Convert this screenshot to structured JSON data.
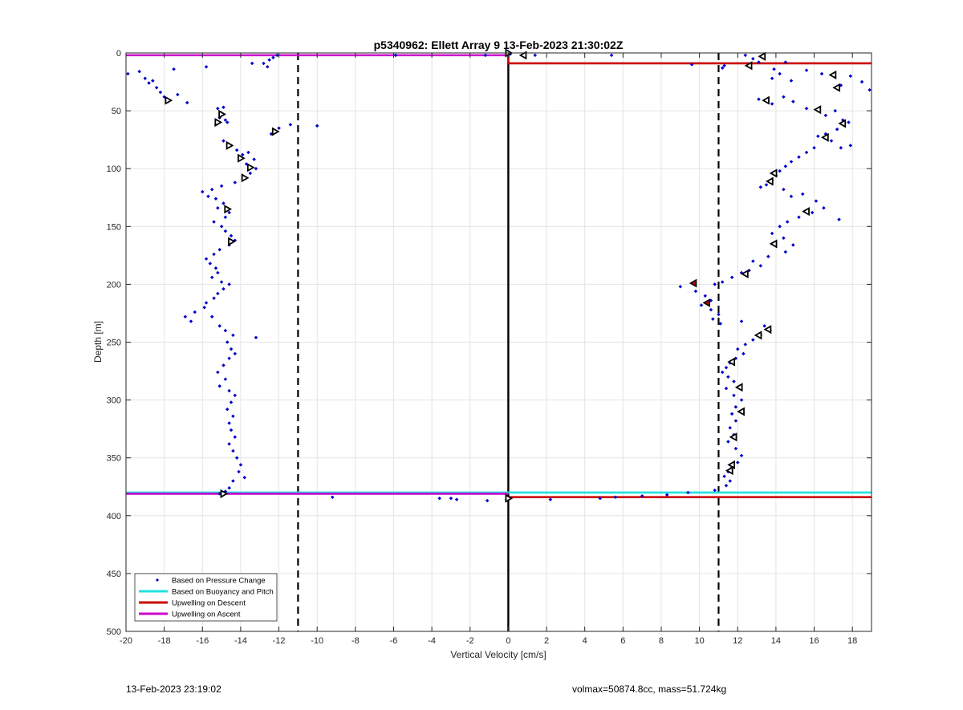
{
  "footer": {
    "timestamp": "13-Feb-2023 23:19:02",
    "volmax_mass": "volmax=50874.8cc, mass=51.724kg"
  },
  "chart_data": {
    "type": "scatter",
    "title": "p5340962: Ellett Array 9 13-Feb-2023 21:30:02Z",
    "xlabel": "Vertical Velocity [cm/s]",
    "ylabel": "Depth [m]",
    "xlim": [
      -20,
      19
    ],
    "ylim": [
      0,
      500
    ],
    "y_reversed": true,
    "grid": true,
    "xticks": [
      -20,
      -18,
      -16,
      -14,
      -12,
      -10,
      -8,
      -6,
      -4,
      -2,
      0,
      2,
      4,
      6,
      8,
      10,
      12,
      14,
      16,
      18
    ],
    "yticks": [
      0,
      50,
      100,
      150,
      200,
      250,
      300,
      350,
      400,
      450,
      500
    ],
    "legend": {
      "placement": "bottom-left",
      "entries": [
        {
          "label": "Based on Pressure Change",
          "color": "#0000cc",
          "style": "dot"
        },
        {
          "label": "Based on Buoyancy and Pitch",
          "color": "#22e0e0",
          "style": "line"
        },
        {
          "label": "Upwelling on Descent",
          "color": "#cc0000",
          "style": "line"
        },
        {
          "label": "Upwelling on Ascent",
          "color": "#cc00cc",
          "style": "line"
        }
      ]
    },
    "reference_lines": [
      {
        "x": -11,
        "style": "dashed",
        "color": "#000000"
      },
      {
        "x": 11,
        "style": "dashed",
        "color": "#000000"
      },
      {
        "x": 0,
        "style": "solid",
        "color": "#000000"
      }
    ],
    "series": [
      {
        "name": "Based on Pressure Change",
        "color": "#0000cc",
        "points": [
          [
            -19.9,
            18
          ],
          [
            -19.3,
            16
          ],
          [
            -19.0,
            22
          ],
          [
            -18.8,
            26
          ],
          [
            -18.6,
            24
          ],
          [
            -18.4,
            30
          ],
          [
            -18.2,
            34
          ],
          [
            -18.0,
            38
          ],
          [
            -17.8,
            42
          ],
          [
            -17.5,
            14
          ],
          [
            -17.3,
            36
          ],
          [
            -16.8,
            43
          ],
          [
            -15.8,
            12
          ],
          [
            -12.8,
            9
          ],
          [
            -12.5,
            6
          ],
          [
            -12.3,
            4
          ],
          [
            -12.1,
            2
          ],
          [
            -12.6,
            12
          ],
          [
            -13.4,
            9
          ],
          [
            -15.2,
            48
          ],
          [
            -15.0,
            52
          ],
          [
            -14.9,
            47
          ],
          [
            -15.1,
            56
          ],
          [
            -14.8,
            58
          ],
          [
            -15.3,
            62
          ],
          [
            -14.7,
            60
          ],
          [
            -12.0,
            65
          ],
          [
            -11.4,
            62
          ],
          [
            -10.0,
            63
          ],
          [
            -12.4,
            70
          ],
          [
            -12.2,
            68
          ],
          [
            -14.9,
            76
          ],
          [
            -14.5,
            80
          ],
          [
            -14.2,
            84
          ],
          [
            -13.9,
            88
          ],
          [
            -13.6,
            86
          ],
          [
            -13.3,
            92
          ],
          [
            -13.7,
            96
          ],
          [
            -13.2,
            100
          ],
          [
            -13.5,
            104
          ],
          [
            -13.8,
            108
          ],
          [
            -14.3,
            112
          ],
          [
            -15.0,
            115
          ],
          [
            -15.5,
            118
          ],
          [
            -16.0,
            120
          ],
          [
            -15.7,
            124
          ],
          [
            -15.3,
            126
          ],
          [
            -14.9,
            130
          ],
          [
            -15.2,
            134
          ],
          [
            -14.6,
            138
          ],
          [
            -14.8,
            142
          ],
          [
            -15.4,
            146
          ],
          [
            -15.0,
            150
          ],
          [
            -14.8,
            154
          ],
          [
            -14.5,
            158
          ],
          [
            -14.3,
            162
          ],
          [
            -14.6,
            166
          ],
          [
            -15.1,
            170
          ],
          [
            -15.4,
            174
          ],
          [
            -15.8,
            178
          ],
          [
            -15.6,
            182
          ],
          [
            -15.3,
            186
          ],
          [
            -15.2,
            190
          ],
          [
            -15.5,
            194
          ],
          [
            -15.0,
            198
          ],
          [
            -14.6,
            200
          ],
          [
            -14.9,
            204
          ],
          [
            -15.2,
            208
          ],
          [
            -15.4,
            212
          ],
          [
            -15.8,
            216
          ],
          [
            -15.9,
            220
          ],
          [
            -16.4,
            224
          ],
          [
            -16.9,
            228
          ],
          [
            -16.6,
            232
          ],
          [
            -15.5,
            228
          ],
          [
            -15.1,
            236
          ],
          [
            -14.8,
            240
          ],
          [
            -14.4,
            244
          ],
          [
            -13.2,
            246
          ],
          [
            -14.7,
            250
          ],
          [
            -14.5,
            256
          ],
          [
            -14.3,
            260
          ],
          [
            -14.6,
            264
          ],
          [
            -14.9,
            270
          ],
          [
            -15.2,
            276
          ],
          [
            -14.8,
            282
          ],
          [
            -15.1,
            288
          ],
          [
            -14.6,
            292
          ],
          [
            -14.3,
            296
          ],
          [
            -14.5,
            302
          ],
          [
            -14.7,
            308
          ],
          [
            -14.4,
            314
          ],
          [
            -14.6,
            320
          ],
          [
            -14.5,
            326
          ],
          [
            -14.3,
            332
          ],
          [
            -14.6,
            338
          ],
          [
            -14.4,
            344
          ],
          [
            -14.2,
            350
          ],
          [
            -14.0,
            356
          ],
          [
            -14.1,
            362
          ],
          [
            -13.8,
            367
          ],
          [
            -14.4,
            370
          ],
          [
            -14.6,
            376
          ],
          [
            -14.8,
            379
          ],
          [
            -15.1,
            381
          ],
          [
            -9.2,
            384
          ],
          [
            -3.6,
            385
          ],
          [
            -3.0,
            385
          ],
          [
            -2.7,
            386
          ],
          [
            -1.1,
            387
          ],
          [
            -0.1,
            386
          ],
          [
            -5.9,
            2
          ],
          [
            -1.2,
            2
          ],
          [
            0.1,
            1
          ],
          [
            0.8,
            2
          ],
          [
            1.4,
            2
          ],
          [
            5.4,
            2
          ],
          [
            2.2,
            386
          ],
          [
            4.8,
            385
          ],
          [
            5.6,
            384
          ],
          [
            7.0,
            383
          ],
          [
            8.3,
            382
          ],
          [
            9.4,
            380
          ],
          [
            10.8,
            378
          ],
          [
            11.3,
            11
          ],
          [
            12.4,
            2
          ],
          [
            12.8,
            5
          ],
          [
            13.1,
            8
          ],
          [
            11.2,
            13
          ],
          [
            9.6,
            10
          ],
          [
            14.5,
            8
          ],
          [
            13.9,
            14
          ],
          [
            14.2,
            18
          ],
          [
            13.8,
            22
          ],
          [
            14.8,
            24
          ],
          [
            15.6,
            15
          ],
          [
            16.4,
            18
          ],
          [
            17.4,
            28
          ],
          [
            17.9,
            20
          ],
          [
            18.5,
            25
          ],
          [
            18.9,
            32
          ],
          [
            13.1,
            40
          ],
          [
            13.8,
            44
          ],
          [
            14.4,
            38
          ],
          [
            14.9,
            42
          ],
          [
            15.6,
            48
          ],
          [
            16.2,
            50
          ],
          [
            16.6,
            54
          ],
          [
            17.1,
            50
          ],
          [
            17.5,
            58
          ],
          [
            17.8,
            60
          ],
          [
            17.2,
            66
          ],
          [
            16.6,
            70
          ],
          [
            16.2,
            72
          ],
          [
            17.9,
            80
          ],
          [
            17.4,
            82
          ],
          [
            16.9,
            76
          ],
          [
            16.0,
            82
          ],
          [
            15.6,
            86
          ],
          [
            15.2,
            90
          ],
          [
            14.8,
            94
          ],
          [
            14.5,
            98
          ],
          [
            14.2,
            102
          ],
          [
            14.0,
            106
          ],
          [
            13.8,
            110
          ],
          [
            13.5,
            114
          ],
          [
            13.2,
            116
          ],
          [
            14.4,
            118
          ],
          [
            14.8,
            124
          ],
          [
            15.4,
            122
          ],
          [
            16.1,
            128
          ],
          [
            16.5,
            134
          ],
          [
            15.9,
            138
          ],
          [
            15.2,
            142
          ],
          [
            14.6,
            146
          ],
          [
            17.3,
            144
          ],
          [
            14.2,
            150
          ],
          [
            13.8,
            156
          ],
          [
            14.4,
            160
          ],
          [
            14.9,
            166
          ],
          [
            14.5,
            172
          ],
          [
            13.6,
            176
          ],
          [
            12.8,
            180
          ],
          [
            13.2,
            184
          ],
          [
            12.6,
            188
          ],
          [
            12.2,
            190
          ],
          [
            11.7,
            194
          ],
          [
            11.2,
            198
          ],
          [
            10.8,
            200
          ],
          [
            9.0,
            202
          ],
          [
            9.8,
            206
          ],
          [
            10.3,
            210
          ],
          [
            10.6,
            214
          ],
          [
            10.1,
            218
          ],
          [
            10.6,
            222
          ],
          [
            11.0,
            226
          ],
          [
            10.7,
            230
          ],
          [
            11.1,
            234
          ],
          [
            12.2,
            232
          ],
          [
            13.4,
            236
          ],
          [
            13.7,
            240
          ],
          [
            13.2,
            244
          ],
          [
            12.8,
            248
          ],
          [
            12.4,
            252
          ],
          [
            12.0,
            256
          ],
          [
            12.3,
            260
          ],
          [
            11.9,
            264
          ],
          [
            11.6,
            268
          ],
          [
            11.4,
            272
          ],
          [
            11.2,
            276
          ],
          [
            11.5,
            280
          ],
          [
            11.8,
            284
          ],
          [
            11.4,
            290
          ],
          [
            11.8,
            296
          ],
          [
            12.2,
            300
          ],
          [
            11.9,
            306
          ],
          [
            11.7,
            312
          ],
          [
            11.9,
            318
          ],
          [
            11.6,
            324
          ],
          [
            11.8,
            330
          ],
          [
            11.5,
            336
          ],
          [
            11.9,
            342
          ],
          [
            12.2,
            348
          ],
          [
            12.0,
            354
          ],
          [
            11.7,
            358
          ],
          [
            11.5,
            362
          ],
          [
            11.3,
            366
          ],
          [
            11.6,
            370
          ],
          [
            11.4,
            374
          ]
        ]
      },
      {
        "name": "Based on Buoyancy and Pitch",
        "color": "#22e0e0",
        "segments": [
          [
            [
              -20,
              380
            ],
            [
              19,
              380
            ]
          ]
        ]
      },
      {
        "name": "Upwelling on Descent",
        "color": "#cc0000",
        "segments": [
          [
            [
              0,
              2
            ],
            [
              0,
              9
            ],
            [
              19,
              9
            ]
          ],
          [
            [
              0,
              384
            ],
            [
              9.5,
              384
            ],
            [
              19,
              384
            ]
          ]
        ]
      },
      {
        "name": "Upwelling on Ascent",
        "color": "#cc00cc",
        "segments": [
          [
            [
              -20,
              2
            ],
            [
              0,
              2
            ]
          ],
          [
            [
              -20,
              381
            ],
            [
              0,
              381
            ]
          ]
        ]
      }
    ],
    "triangle_markers": [
      [
        0,
        0
      ],
      [
        0.8,
        2
      ],
      [
        13.3,
        3
      ],
      [
        12.6,
        11
      ],
      [
        17.0,
        19
      ],
      [
        17.2,
        30
      ],
      [
        13.5,
        41
      ],
      [
        16.2,
        49
      ],
      [
        17.5,
        61
      ],
      [
        16.6,
        73
      ],
      [
        13.9,
        104
      ],
      [
        13.7,
        111
      ],
      [
        15.6,
        137
      ],
      [
        13.9,
        165
      ],
      [
        12.4,
        191
      ],
      [
        13.6,
        239
      ],
      [
        13.1,
        244
      ],
      [
        11.7,
        267
      ],
      [
        12.1,
        289
      ],
      [
        12.2,
        310
      ],
      [
        11.8,
        332
      ],
      [
        11.7,
        356
      ],
      [
        11.6,
        361
      ],
      [
        -17.8,
        41
      ],
      [
        -15.0,
        53
      ],
      [
        -15.2,
        60
      ],
      [
        -14.6,
        80
      ],
      [
        -14.0,
        91
      ],
      [
        -13.5,
        99
      ],
      [
        -13.8,
        108
      ],
      [
        -12.2,
        68
      ],
      [
        -14.7,
        135
      ],
      [
        -14.5,
        163
      ],
      [
        -14.9,
        381
      ],
      [
        0,
        385
      ]
    ],
    "red_markers": [
      [
        9.7,
        199
      ],
      [
        10.4,
        216
      ]
    ]
  }
}
